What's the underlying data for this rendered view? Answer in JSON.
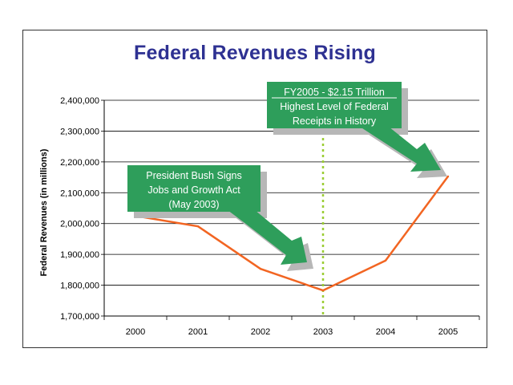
{
  "chart_data": {
    "type": "line",
    "title": "Federal Revenues Rising",
    "xlabel": "",
    "ylabel": "Federal Revenues (in millions)",
    "categories": [
      "2000",
      "2001",
      "2002",
      "2003",
      "2004",
      "2005"
    ],
    "series": [
      {
        "name": "Federal Revenues",
        "values": [
          2025000,
          1991000,
          1853000,
          1783000,
          1880000,
          2153000
        ],
        "color": "#f26522"
      }
    ],
    "ylim": [
      1700000,
      2400000
    ],
    "yticks": [
      1700000,
      1800000,
      1900000,
      2000000,
      2100000,
      2200000,
      2300000,
      2400000
    ],
    "ytick_labels": [
      "1,700,000",
      "1,800,000",
      "1,900,000",
      "2,000,000",
      "2,100,000",
      "2,200,000",
      "2,300,000",
      "2,400,000"
    ],
    "grid": true,
    "marker_line_category": "2003",
    "annotations": [
      {
        "id": "bush-signs",
        "lines": [
          "President Bush Signs",
          "Jobs and Growth Act",
          "(May 2003)"
        ],
        "target_category": "2003"
      },
      {
        "id": "fy2005",
        "lines": [
          "FY2005 - $2.15 Trillion",
          "Highest Level of Federal",
          "Receipts in History"
        ],
        "target_category": "2005"
      }
    ]
  },
  "colors": {
    "title": "#2e3192",
    "line": "#f26522",
    "callout": "#2e9e5b",
    "shadow": "#b7b7b7",
    "marker_line": "#9acd32"
  }
}
